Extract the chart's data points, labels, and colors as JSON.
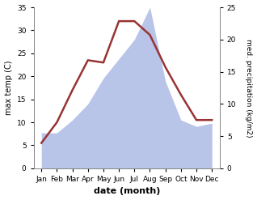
{
  "months": [
    "Jan",
    "Feb",
    "Mar",
    "Apr",
    "May",
    "Jun",
    "Jul",
    "Aug",
    "Sep",
    "Oct",
    "Nov",
    "Dec"
  ],
  "month_indices": [
    0,
    1,
    2,
    3,
    4,
    5,
    6,
    7,
    8,
    9,
    10,
    11
  ],
  "temperature": [
    5.5,
    10.0,
    17.0,
    23.5,
    23.0,
    32.0,
    32.0,
    29.0,
    22.0,
    16.0,
    10.5,
    10.5
  ],
  "precipitation": [
    5.5,
    5.5,
    7.5,
    10.0,
    14.0,
    17.0,
    20.0,
    25.0,
    13.5,
    7.5,
    6.5,
    7.0
  ],
  "temp_color": "#993333",
  "precip_color": "#b8c4e8",
  "ylim_temp": [
    0,
    35
  ],
  "ylim_precip": [
    0,
    25
  ],
  "ylabel_left": "max temp (C)",
  "ylabel_right": "med. precipitation (kg/m2)",
  "xlabel": "date (month)",
  "bg_color": "#ffffff",
  "yticks_left": [
    0,
    5,
    10,
    15,
    20,
    25,
    30,
    35
  ],
  "yticks_right": [
    0,
    5,
    10,
    15,
    20,
    25
  ]
}
